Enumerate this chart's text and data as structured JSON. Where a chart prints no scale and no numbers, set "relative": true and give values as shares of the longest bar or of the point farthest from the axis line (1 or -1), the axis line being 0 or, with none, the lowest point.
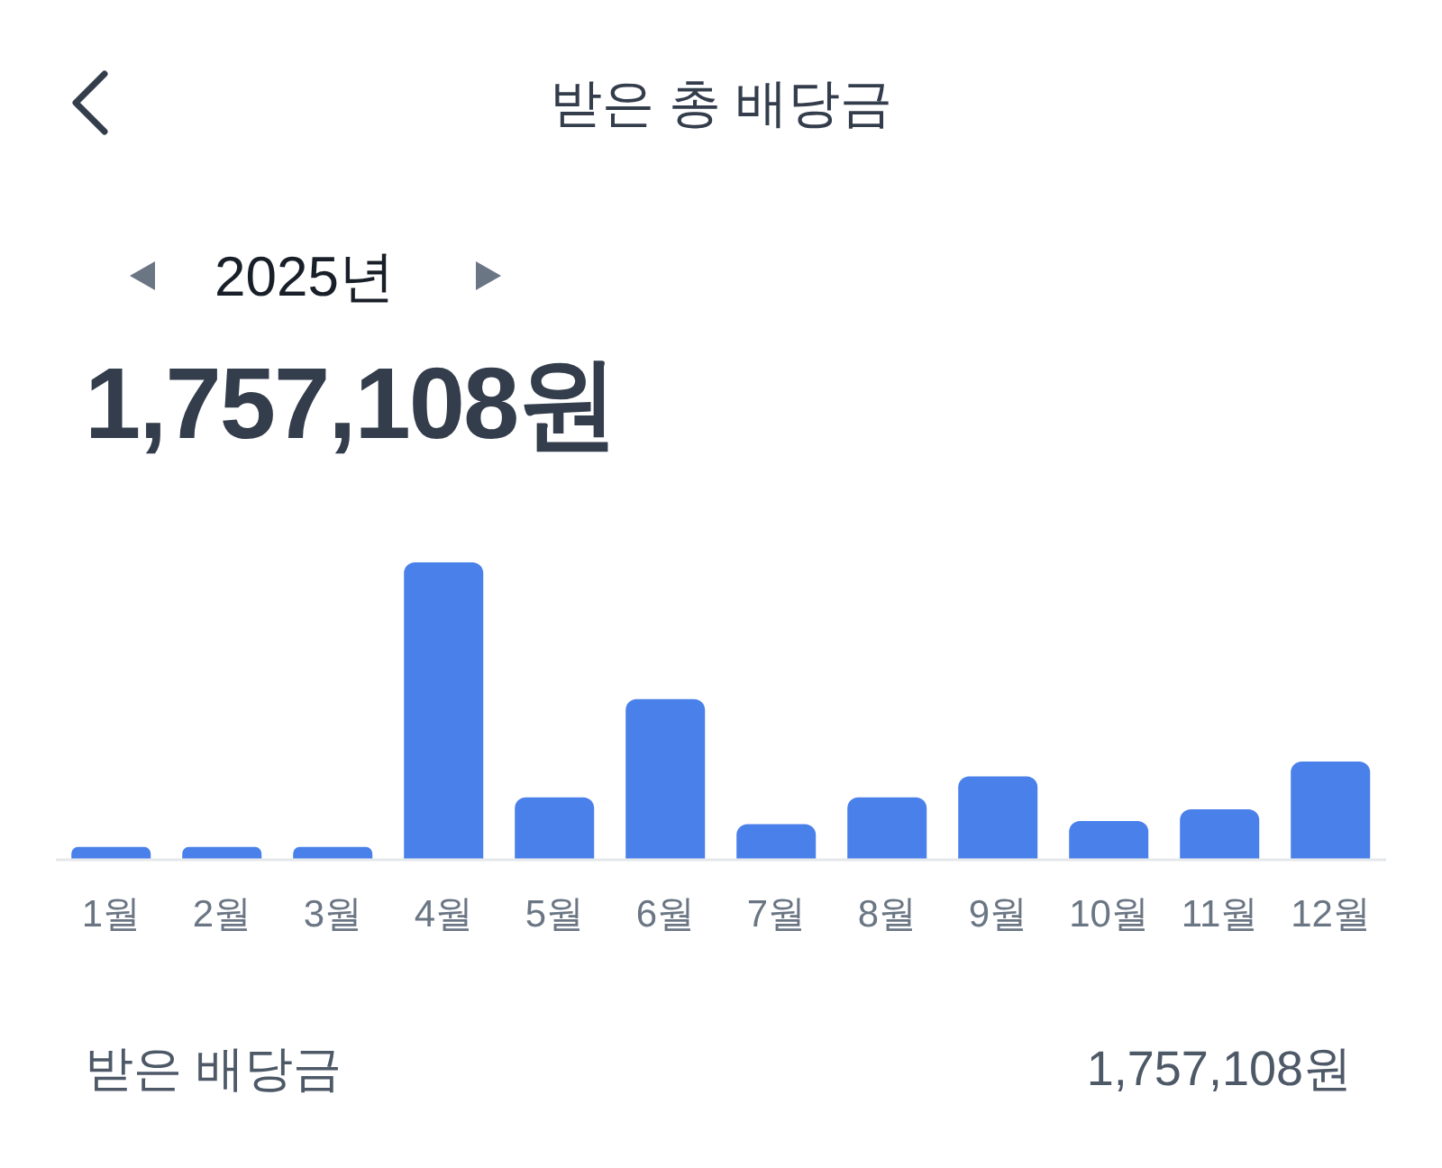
{
  "chart_data": {
    "type": "bar",
    "title": "받은 총 배당금",
    "subtitle": "2025년",
    "annotations": [
      "1,757,108원",
      "받은 배당금",
      "1,757,108원"
    ],
    "categories": [
      "1월",
      "2월",
      "3월",
      "4월",
      "5월",
      "6월",
      "7월",
      "8월",
      "9월",
      "10월",
      "11월",
      "12월"
    ],
    "values": [
      0.043,
      0.043,
      0.043,
      1,
      0.21,
      0.54,
      0.12,
      0.21,
      0.28,
      0.13,
      0.17,
      0.33
    ],
    "color": "#4a80ea",
    "relative": true
  }
}
